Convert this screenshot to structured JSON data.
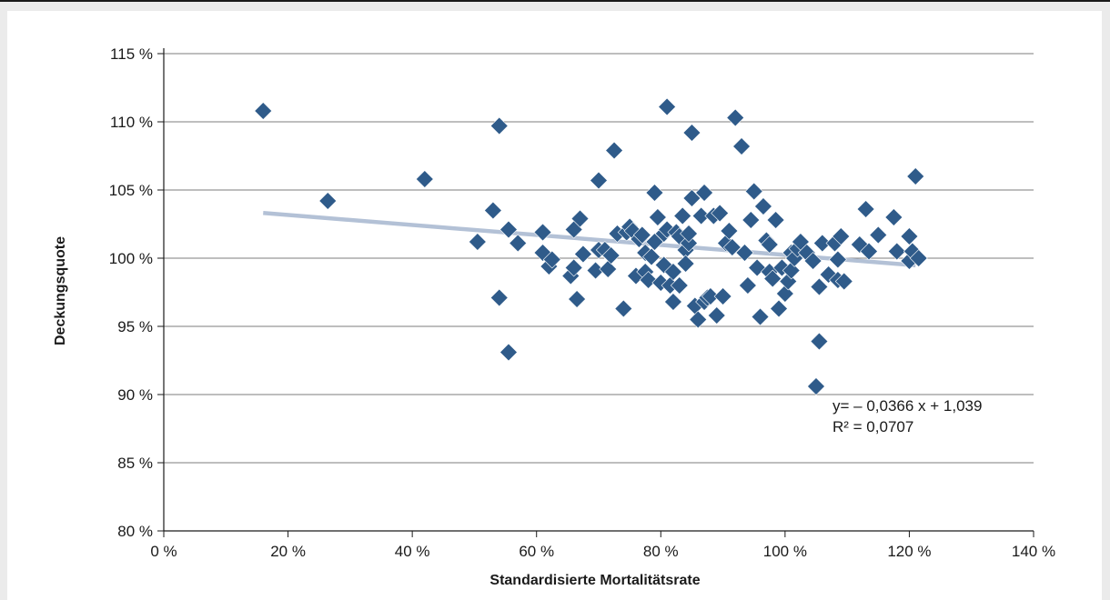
{
  "chart_data": {
    "type": "scatter",
    "title": "",
    "xlabel": "Standardisierte Mortalitätsrate",
    "ylabel": "Deckungsquote",
    "xlim": [
      0,
      1.4
    ],
    "ylim": [
      0.8,
      1.15
    ],
    "x_ticks": [
      0,
      0.2,
      0.4,
      0.6,
      0.8,
      1.0,
      1.2,
      1.4
    ],
    "x_tick_labels": [
      "0 %",
      "20 %",
      "40 %",
      "60 %",
      "80 %",
      "100 %",
      "120 %",
      "140 %"
    ],
    "y_ticks": [
      0.8,
      0.85,
      0.9,
      0.95,
      1.0,
      1.05,
      1.1,
      1.15
    ],
    "y_tick_labels": [
      "80 %",
      "85 %",
      "90 %",
      "95 %",
      "100 %",
      "105 %",
      "110 %",
      "115 %"
    ],
    "grid": "horizontal",
    "marker": "diamond",
    "marker_color": "#2f5b8a",
    "trendline_color": "#b3c1d6",
    "trendline": {
      "slope": -0.0366,
      "intercept": 1.039,
      "x_range": [
        0.16,
        1.21
      ],
      "equation_label": "y= – 0,0366 x + 1,039",
      "r2_label": "R² = 0,0707"
    },
    "points": [
      [
        0.16,
        1.108
      ],
      [
        0.264,
        1.042
      ],
      [
        0.42,
        1.058
      ],
      [
        0.505,
        1.012
      ],
      [
        0.53,
        1.035
      ],
      [
        0.54,
        1.097
      ],
      [
        0.54,
        0.971
      ],
      [
        0.555,
        1.021
      ],
      [
        0.555,
        0.931
      ],
      [
        0.57,
        1.011
      ],
      [
        0.61,
        1.019
      ],
      [
        0.61,
        1.004
      ],
      [
        0.62,
        0.994
      ],
      [
        0.625,
        0.999
      ],
      [
        0.655,
        0.987
      ],
      [
        0.66,
        1.021
      ],
      [
        0.66,
        0.993
      ],
      [
        0.665,
        0.97
      ],
      [
        0.67,
        1.029
      ],
      [
        0.675,
        1.003
      ],
      [
        0.695,
        0.991
      ],
      [
        0.7,
        1.006
      ],
      [
        0.7,
        1.057
      ],
      [
        0.71,
        1.006
      ],
      [
        0.715,
        0.992
      ],
      [
        0.72,
        1.002
      ],
      [
        0.725,
        1.079
      ],
      [
        0.73,
        1.018
      ],
      [
        0.74,
        0.963
      ],
      [
        0.745,
        1.019
      ],
      [
        0.75,
        1.023
      ],
      [
        0.755,
        1.02
      ],
      [
        0.76,
        0.987
      ],
      [
        0.765,
        1.014
      ],
      [
        0.77,
        1.017
      ],
      [
        0.775,
        0.99
      ],
      [
        0.775,
        1.004
      ],
      [
        0.78,
        0.984
      ],
      [
        0.785,
        1.001
      ],
      [
        0.79,
        1.012
      ],
      [
        0.79,
        1.048
      ],
      [
        0.795,
        1.03
      ],
      [
        0.8,
        0.982
      ],
      [
        0.805,
        1.018
      ],
      [
        0.805,
        0.995
      ],
      [
        0.81,
        1.111
      ],
      [
        0.81,
        1.021
      ],
      [
        0.815,
        0.98
      ],
      [
        0.82,
        0.968
      ],
      [
        0.82,
        0.99
      ],
      [
        0.825,
        1.019
      ],
      [
        0.83,
        1.016
      ],
      [
        0.83,
        0.98
      ],
      [
        0.835,
        1.031
      ],
      [
        0.84,
        1.006
      ],
      [
        0.84,
        0.996
      ],
      [
        0.845,
        1.011
      ],
      [
        0.845,
        1.018
      ],
      [
        0.85,
        1.044
      ],
      [
        0.85,
        1.092
      ],
      [
        0.855,
        0.965
      ],
      [
        0.86,
        0.955
      ],
      [
        0.865,
        1.031
      ],
      [
        0.87,
        1.048
      ],
      [
        0.87,
        0.968
      ],
      [
        0.875,
        0.971
      ],
      [
        0.88,
        0.972
      ],
      [
        0.885,
        1.031
      ],
      [
        0.89,
        0.958
      ],
      [
        0.895,
        1.033
      ],
      [
        0.9,
        0.972
      ],
      [
        0.905,
        1.011
      ],
      [
        0.91,
        1.02
      ],
      [
        0.915,
        1.008
      ],
      [
        0.92,
        1.103
      ],
      [
        0.93,
        1.082
      ],
      [
        0.935,
        1.004
      ],
      [
        0.94,
        0.98
      ],
      [
        0.945,
        1.028
      ],
      [
        0.95,
        1.049
      ],
      [
        0.955,
        0.993
      ],
      [
        0.96,
        0.957
      ],
      [
        0.965,
        1.038
      ],
      [
        0.97,
        1.013
      ],
      [
        0.975,
        1.01
      ],
      [
        0.975,
        0.99
      ],
      [
        0.98,
        0.985
      ],
      [
        0.985,
        1.028
      ],
      [
        0.99,
        0.963
      ],
      [
        0.995,
        0.993
      ],
      [
        1.0,
        0.974
      ],
      [
        1.005,
        0.983
      ],
      [
        1.01,
        1.004
      ],
      [
        1.01,
        0.991
      ],
      [
        1.015,
        1.0
      ],
      [
        1.02,
        1.007
      ],
      [
        1.025,
        1.012
      ],
      [
        1.035,
        1.004
      ],
      [
        1.045,
        0.998
      ],
      [
        1.05,
        0.906
      ],
      [
        1.055,
        0.939
      ],
      [
        1.055,
        0.979
      ],
      [
        1.06,
        1.011
      ],
      [
        1.07,
        0.988
      ],
      [
        1.08,
        1.011
      ],
      [
        1.085,
        0.999
      ],
      [
        1.085,
        0.984
      ],
      [
        1.09,
        1.016
      ],
      [
        1.095,
        0.983
      ],
      [
        1.12,
        1.01
      ],
      [
        1.13,
        1.036
      ],
      [
        1.135,
        1.005
      ],
      [
        1.15,
        1.017
      ],
      [
        1.175,
        1.03
      ],
      [
        1.18,
        1.005
      ],
      [
        1.2,
        1.016
      ],
      [
        1.2,
        0.998
      ],
      [
        1.205,
        1.005
      ],
      [
        1.21,
        1.06
      ],
      [
        1.215,
        1.0
      ]
    ]
  }
}
